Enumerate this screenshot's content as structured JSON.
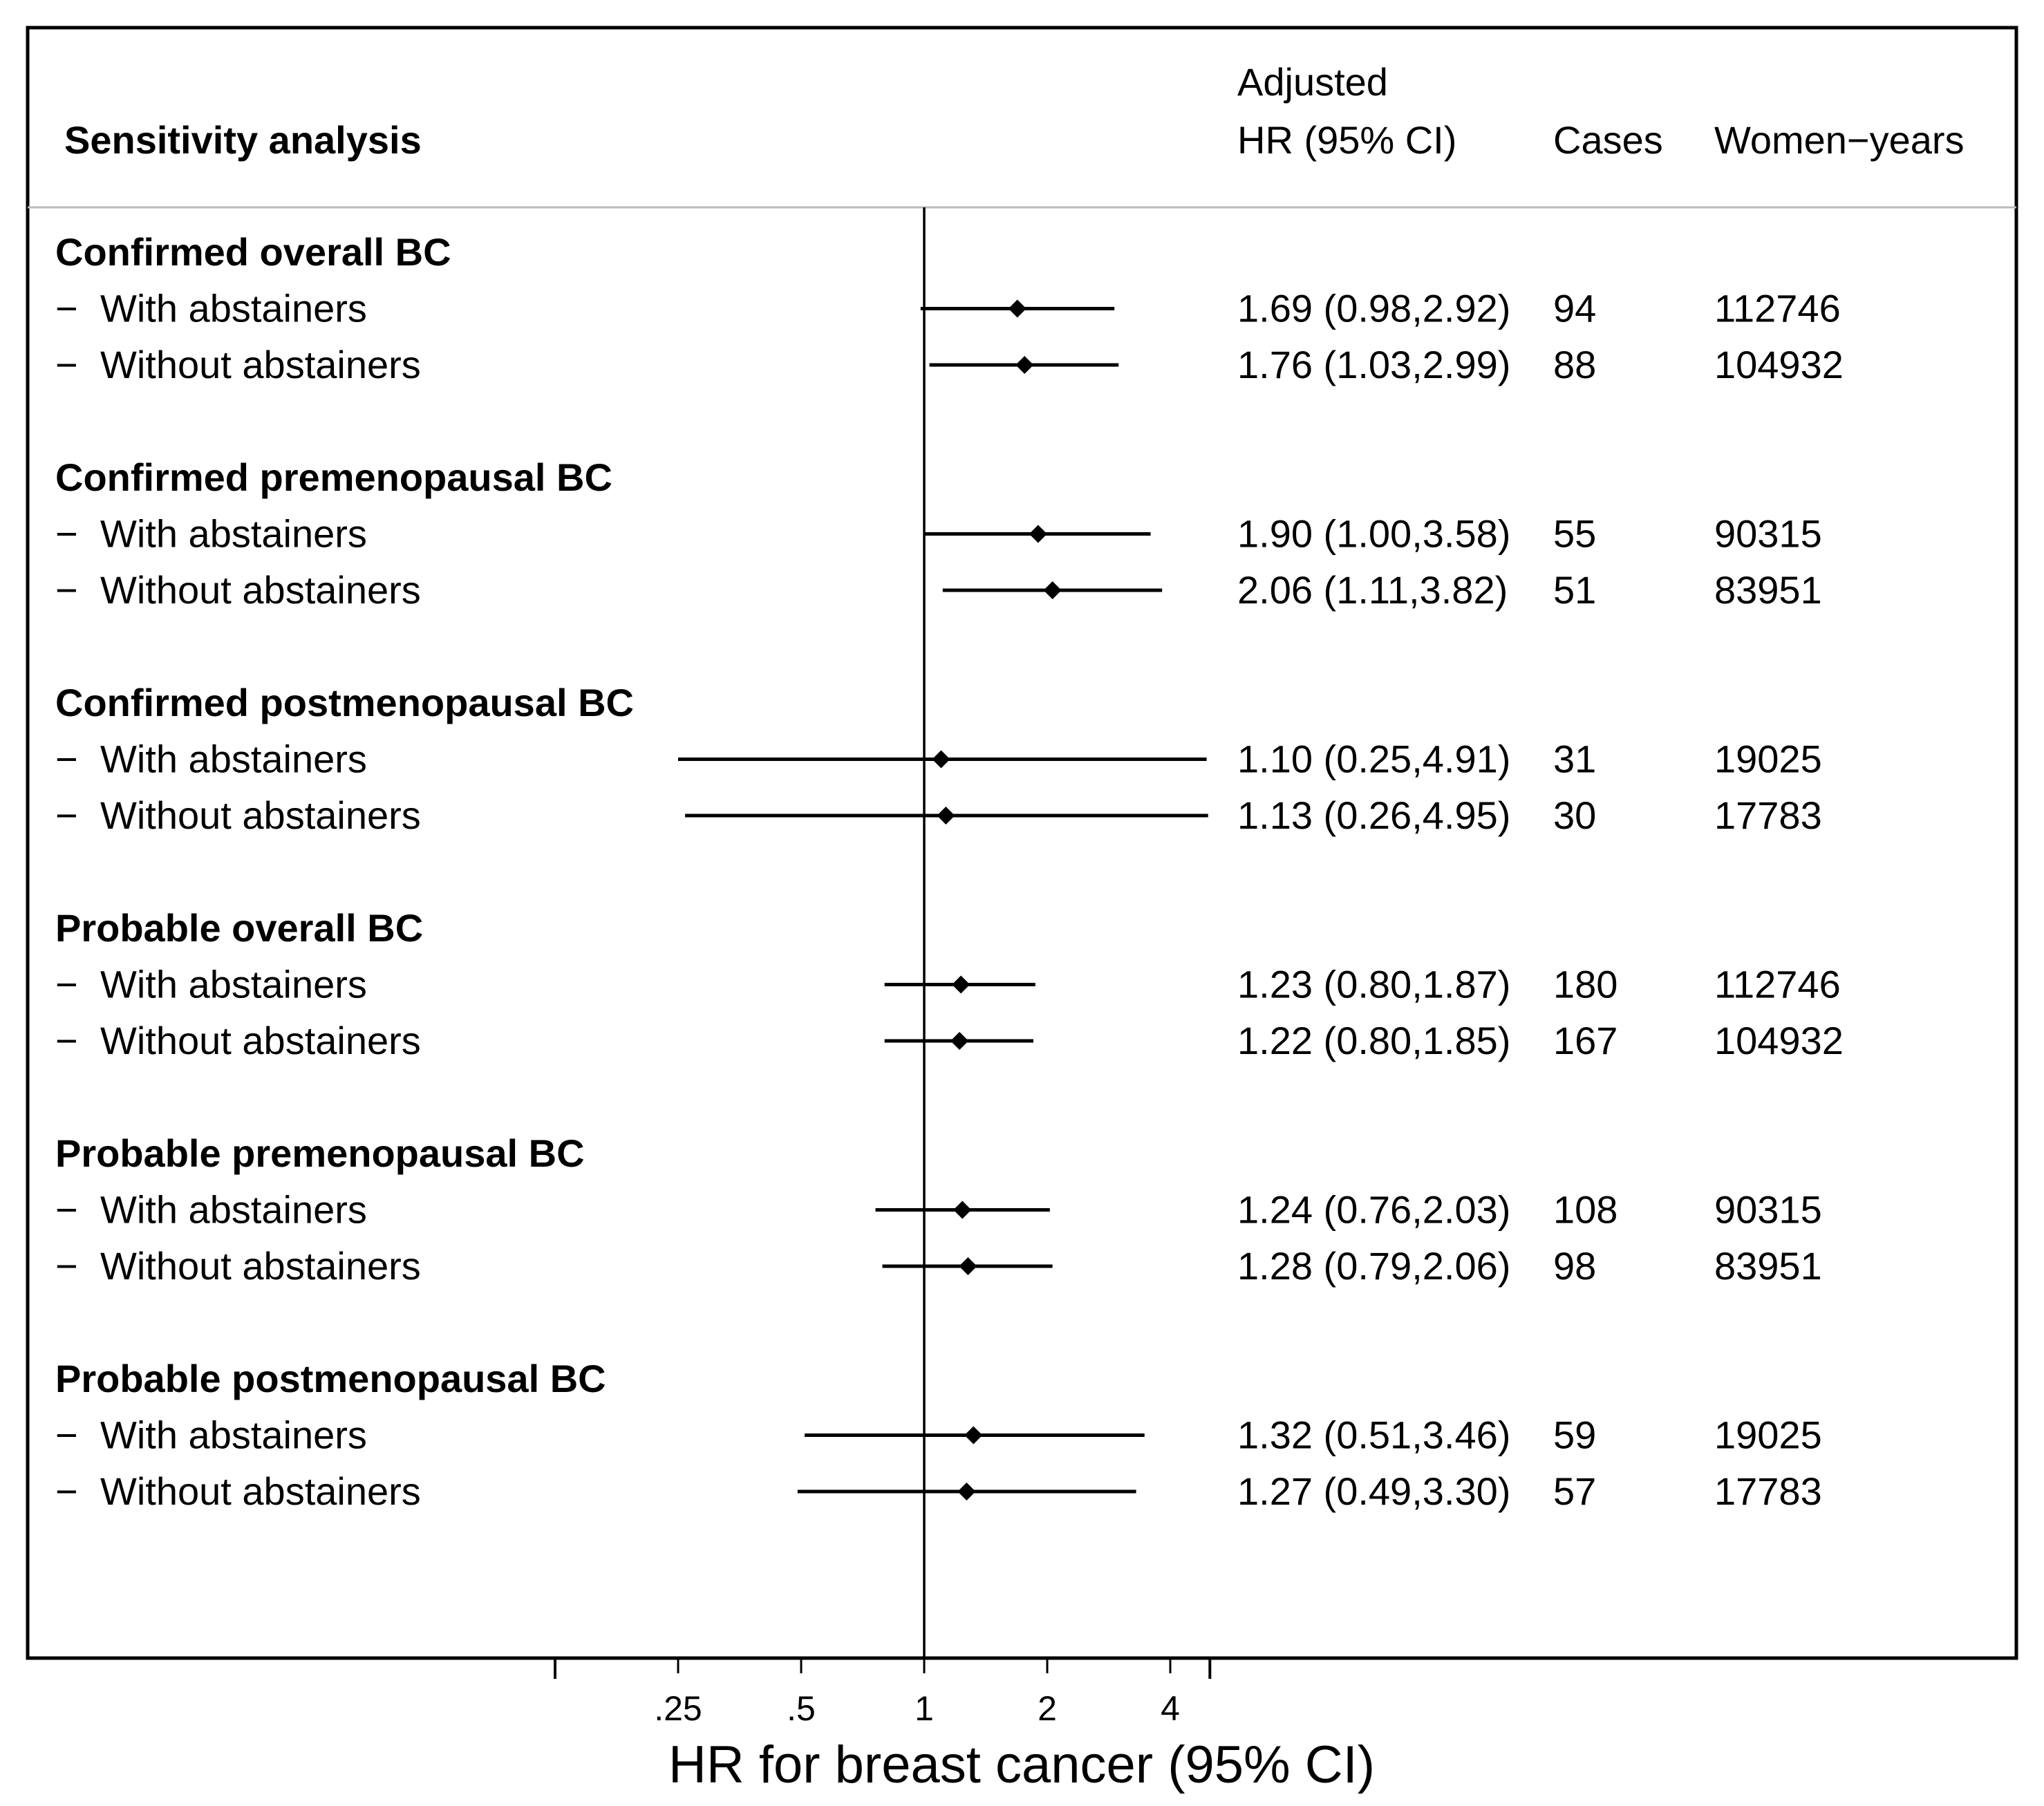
{
  "chart_data": {
    "type": "forest",
    "title": "",
    "xlabel": "HR for breast cancer (95% CI)",
    "x_scale": "log2",
    "xlim": [
      0.125,
      5
    ],
    "x_ticks": [
      {
        "value": 0.25,
        "label": ".25"
      },
      {
        "value": 0.5,
        "label": ".5"
      },
      {
        "value": 1,
        "label": "1"
      },
      {
        "value": 2,
        "label": "2"
      },
      {
        "value": 4,
        "label": "4"
      }
    ],
    "reference_line": 1,
    "headers": {
      "analysis": "Sensitivity analysis",
      "hr_line1": "Adjusted",
      "hr_line2": "HR (95% CI)",
      "cases": "Cases",
      "women_years": "Women−years"
    },
    "row_marker": "−",
    "groups": [
      {
        "label": "Confirmed overall BC",
        "rows": [
          {
            "label": "With abstainers",
            "hr": 1.69,
            "lo": 0.98,
            "hi": 2.92,
            "hr_text": "1.69 (0.98,2.92)",
            "cases": "94",
            "women_years": "112746"
          },
          {
            "label": "Without abstainers",
            "hr": 1.76,
            "lo": 1.03,
            "hi": 2.99,
            "hr_text": "1.76 (1.03,2.99)",
            "cases": "88",
            "women_years": "104932"
          }
        ]
      },
      {
        "label": "Confirmed premenopausal BC",
        "rows": [
          {
            "label": "With abstainers",
            "hr": 1.9,
            "lo": 1.0,
            "hi": 3.58,
            "hr_text": "1.90 (1.00,3.58)",
            "cases": "55",
            "women_years": "90315"
          },
          {
            "label": "Without abstainers",
            "hr": 2.06,
            "lo": 1.11,
            "hi": 3.82,
            "hr_text": "2.06 (1.11,3.82)",
            "cases": "51",
            "women_years": "83951"
          }
        ]
      },
      {
        "label": "Confirmed postmenopausal BC",
        "rows": [
          {
            "label": "With abstainers",
            "hr": 1.1,
            "lo": 0.25,
            "hi": 4.91,
            "hr_text": "1.10 (0.25,4.91)",
            "cases": "31",
            "women_years": "19025"
          },
          {
            "label": "Without abstainers",
            "hr": 1.13,
            "lo": 0.26,
            "hi": 4.95,
            "hr_text": "1.13 (0.26,4.95)",
            "cases": "30",
            "women_years": "17783"
          }
        ]
      },
      {
        "label": "Probable overall BC",
        "rows": [
          {
            "label": "With abstainers",
            "hr": 1.23,
            "lo": 0.8,
            "hi": 1.87,
            "hr_text": "1.23 (0.80,1.87)",
            "cases": "180",
            "women_years": "112746"
          },
          {
            "label": "Without abstainers",
            "hr": 1.22,
            "lo": 0.8,
            "hi": 1.85,
            "hr_text": "1.22 (0.80,1.85)",
            "cases": "167",
            "women_years": "104932"
          }
        ]
      },
      {
        "label": "Probable premenopausal BC",
        "rows": [
          {
            "label": "With abstainers",
            "hr": 1.24,
            "lo": 0.76,
            "hi": 2.03,
            "hr_text": "1.24 (0.76,2.03)",
            "cases": "108",
            "women_years": "90315"
          },
          {
            "label": "Without abstainers",
            "hr": 1.28,
            "lo": 0.79,
            "hi": 2.06,
            "hr_text": "1.28 (0.79,2.06)",
            "cases": "98",
            "women_years": "83951"
          }
        ]
      },
      {
        "label": "Probable postmenopausal BC",
        "rows": [
          {
            "label": "With abstainers",
            "hr": 1.32,
            "lo": 0.51,
            "hi": 3.46,
            "hr_text": "1.32 (0.51,3.46)",
            "cases": "59",
            "women_years": "19025"
          },
          {
            "label": "Without abstainers",
            "hr": 1.27,
            "lo": 0.49,
            "hi": 3.3,
            "hr_text": "1.27 (0.49,3.30)",
            "cases": "57",
            "women_years": "17783"
          }
        ]
      }
    ]
  }
}
